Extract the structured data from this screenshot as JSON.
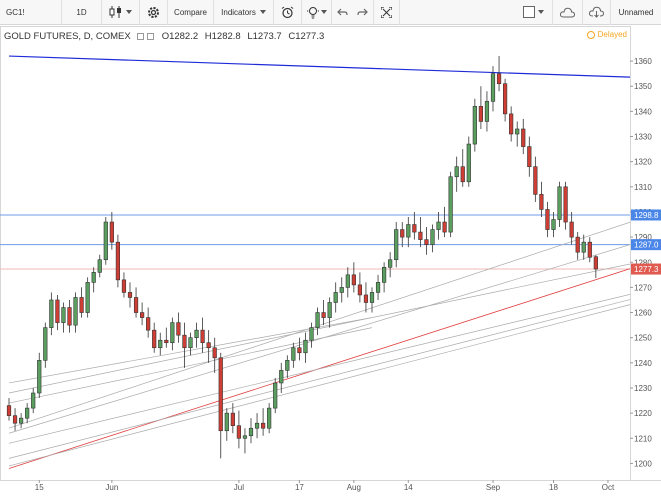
{
  "toolbar": {
    "symbol": "GC1!",
    "interval": "1D",
    "compare_label": "Compare",
    "indicators_label": "Indicators",
    "layout_name": "Unnamed"
  },
  "legend": {
    "title": "GOLD FUTURES, D, COMEX",
    "open": "O1282.2",
    "high": "H1282.8",
    "low": "L1273.7",
    "close": "C1277.3",
    "delayed": "Delayed"
  },
  "colors": {
    "up": "#5a9f5f",
    "down": "#cf3e35",
    "trendline_blue": "#1f2bd8",
    "trendline_red": "#e04040",
    "hline_blue": "#6f9be8",
    "hline_red": "#f0b8b8",
    "price_tag_blue": "#4a86e8",
    "price_tag_red": "#e05a50"
  },
  "chart_data": {
    "type": "candlestick",
    "y_ticks": [
      1200,
      1210,
      1220,
      1230,
      1240,
      1250,
      1260,
      1270,
      1280,
      1290,
      1300,
      1310,
      1320,
      1330,
      1340,
      1350,
      1360
    ],
    "ylim": [
      1195,
      1366
    ],
    "x_labels": [
      {
        "label": "15",
        "index": 5
      },
      {
        "label": "Jun",
        "index": 17
      },
      {
        "label": "Jul",
        "index": 38
      },
      {
        "label": "17",
        "index": 48
      },
      {
        "label": "Aug",
        "index": 57
      },
      {
        "label": "14",
        "index": 66
      },
      {
        "label": "Sep",
        "index": 80
      },
      {
        "label": "18",
        "index": 90
      },
      {
        "label": "Oct",
        "index": 99
      }
    ],
    "price_tags": [
      {
        "value": "1298.8",
        "price": 1298.8,
        "color": "#4a86e8"
      },
      {
        "value": "1287.0",
        "price": 1287.0,
        "color": "#4a86e8"
      },
      {
        "value": "1277.3",
        "price": 1277.3,
        "color": "#e05a50"
      }
    ],
    "hlines": [
      {
        "price": 1298.8,
        "color": "#6f9be8"
      },
      {
        "price": 1287.0,
        "color": "#6f9be8"
      },
      {
        "price": 1277.3,
        "color": "#f0b8b8"
      }
    ],
    "trendlines": [
      {
        "from": [
          0,
          1362
        ],
        "to": [
          104,
          1353.5
        ],
        "color": "#1f2bd8",
        "width": 1.2
      },
      {
        "from": [
          0,
          1198
        ],
        "to": [
          104,
          1278.5
        ],
        "color": "#e04040",
        "width": 0.8
      },
      {
        "from": [
          0,
          1214
        ],
        "to": [
          104,
          1297
        ],
        "color": "#aaaaaa",
        "width": 0.7
      },
      {
        "from": [
          0,
          1212
        ],
        "to": [
          104,
          1288
        ],
        "color": "#aaaaaa",
        "width": 0.7
      },
      {
        "from": [
          0,
          1228
        ],
        "to": [
          104,
          1280
        ],
        "color": "#aaaaaa",
        "width": 0.7
      },
      {
        "from": [
          0,
          1208
        ],
        "to": [
          104,
          1268
        ],
        "color": "#aaaaaa",
        "width": 0.7
      },
      {
        "from": [
          0,
          1202
        ],
        "to": [
          104,
          1266
        ],
        "color": "#aaaaaa",
        "width": 0.7
      },
      {
        "from": [
          0,
          1199
        ],
        "to": [
          104,
          1264
        ],
        "color": "#aaaaaa",
        "width": 0.7
      },
      {
        "from": [
          0,
          1232
        ],
        "to": [
          60,
          1258
        ],
        "color": "#aaaaaa",
        "width": 0.7
      },
      {
        "from": [
          0,
          1224
        ],
        "to": [
          60,
          1254
        ],
        "color": "#aaaaaa",
        "width": 0.7
      }
    ],
    "candles": [
      [
        1223,
        1226,
        1217,
        1219
      ],
      [
        1219,
        1222,
        1213,
        1216
      ],
      [
        1216,
        1220,
        1214,
        1218
      ],
      [
        1218,
        1224,
        1216,
        1222
      ],
      [
        1222,
        1230,
        1220,
        1228
      ],
      [
        1228,
        1244,
        1226,
        1241
      ],
      [
        1241,
        1256,
        1238,
        1254
      ],
      [
        1254,
        1268,
        1251,
        1265
      ],
      [
        1265,
        1267,
        1253,
        1256
      ],
      [
        1256,
        1264,
        1252,
        1262
      ],
      [
        1262,
        1265,
        1252,
        1255
      ],
      [
        1255,
        1268,
        1252,
        1266
      ],
      [
        1266,
        1270,
        1258,
        1260
      ],
      [
        1260,
        1274,
        1258,
        1272
      ],
      [
        1272,
        1278,
        1268,
        1276
      ],
      [
        1276,
        1283,
        1274,
        1281
      ],
      [
        1281,
        1298,
        1279,
        1296
      ],
      [
        1296,
        1300,
        1285,
        1288
      ],
      [
        1288,
        1291,
        1270,
        1273
      ],
      [
        1273,
        1276,
        1266,
        1268
      ],
      [
        1268,
        1272,
        1262,
        1266
      ],
      [
        1266,
        1270,
        1258,
        1260
      ],
      [
        1260,
        1264,
        1255,
        1258
      ],
      [
        1258,
        1262,
        1250,
        1253
      ],
      [
        1253,
        1256,
        1244,
        1246
      ],
      [
        1246,
        1252,
        1243,
        1249
      ],
      [
        1249,
        1254,
        1246,
        1248
      ],
      [
        1248,
        1258,
        1245,
        1256
      ],
      [
        1256,
        1260,
        1248,
        1251
      ],
      [
        1251,
        1256,
        1238,
        1246
      ],
      [
        1246,
        1252,
        1243,
        1250
      ],
      [
        1250,
        1256,
        1246,
        1253
      ],
      [
        1253,
        1258,
        1244,
        1248
      ],
      [
        1248,
        1253,
        1240,
        1246
      ],
      [
        1246,
        1250,
        1236,
        1242
      ],
      [
        1242,
        1244,
        1202,
        1213
      ],
      [
        1213,
        1222,
        1209,
        1220
      ],
      [
        1220,
        1224,
        1212,
        1215
      ],
      [
        1215,
        1221,
        1206,
        1210
      ],
      [
        1210,
        1214,
        1204,
        1211
      ],
      [
        1211,
        1218,
        1208,
        1214
      ],
      [
        1214,
        1220,
        1210,
        1216
      ],
      [
        1216,
        1222,
        1211,
        1214
      ],
      [
        1214,
        1224,
        1212,
        1222
      ],
      [
        1222,
        1234,
        1220,
        1232
      ],
      [
        1232,
        1240,
        1228,
        1237
      ],
      [
        1237,
        1243,
        1234,
        1241
      ],
      [
        1241,
        1248,
        1238,
        1246
      ],
      [
        1246,
        1250,
        1241,
        1244
      ],
      [
        1244,
        1252,
        1240,
        1249
      ],
      [
        1249,
        1256,
        1246,
        1254
      ],
      [
        1254,
        1262,
        1251,
        1260
      ],
      [
        1260,
        1265,
        1255,
        1258
      ],
      [
        1258,
        1266,
        1254,
        1264
      ],
      [
        1264,
        1272,
        1260,
        1268
      ],
      [
        1268,
        1274,
        1264,
        1270
      ],
      [
        1270,
        1278,
        1266,
        1275
      ],
      [
        1275,
        1280,
        1268,
        1271
      ],
      [
        1271,
        1276,
        1264,
        1267
      ],
      [
        1267,
        1272,
        1260,
        1264
      ],
      [
        1264,
        1270,
        1260,
        1268
      ],
      [
        1268,
        1275,
        1265,
        1272
      ],
      [
        1272,
        1280,
        1268,
        1278
      ],
      [
        1278,
        1284,
        1274,
        1281
      ],
      [
        1281,
        1296,
        1278,
        1293
      ],
      [
        1293,
        1296,
        1286,
        1290
      ],
      [
        1290,
        1298,
        1286,
        1295
      ],
      [
        1295,
        1300,
        1289,
        1292
      ],
      [
        1292,
        1298,
        1286,
        1289
      ],
      [
        1289,
        1294,
        1283,
        1287
      ],
      [
        1287,
        1295,
        1284,
        1293
      ],
      [
        1293,
        1300,
        1289,
        1296
      ],
      [
        1296,
        1302,
        1290,
        1292
      ],
      [
        1292,
        1316,
        1290,
        1314
      ],
      [
        1314,
        1322,
        1308,
        1318
      ],
      [
        1318,
        1325,
        1310,
        1312
      ],
      [
        1312,
        1330,
        1310,
        1327
      ],
      [
        1327,
        1345,
        1324,
        1342
      ],
      [
        1342,
        1350,
        1333,
        1336
      ],
      [
        1336,
        1348,
        1332,
        1344
      ],
      [
        1344,
        1358,
        1340,
        1355
      ],
      [
        1355,
        1362,
        1348,
        1351
      ],
      [
        1351,
        1353,
        1336,
        1339
      ],
      [
        1339,
        1342,
        1328,
        1331
      ],
      [
        1331,
        1336,
        1326,
        1333
      ],
      [
        1333,
        1337,
        1323,
        1326
      ],
      [
        1326,
        1330,
        1314,
        1318
      ],
      [
        1318,
        1322,
        1304,
        1307
      ],
      [
        1307,
        1312,
        1298,
        1301
      ],
      [
        1301,
        1304,
        1290,
        1293
      ],
      [
        1293,
        1300,
        1290,
        1297
      ],
      [
        1297,
        1312,
        1294,
        1310
      ],
      [
        1310,
        1312,
        1293,
        1296
      ],
      [
        1296,
        1300,
        1287,
        1290
      ],
      [
        1290,
        1292,
        1281,
        1284
      ],
      [
        1284,
        1291,
        1281,
        1288
      ],
      [
        1288,
        1290,
        1280,
        1282
      ],
      [
        1282.2,
        1282.8,
        1273.7,
        1277.3
      ]
    ]
  }
}
